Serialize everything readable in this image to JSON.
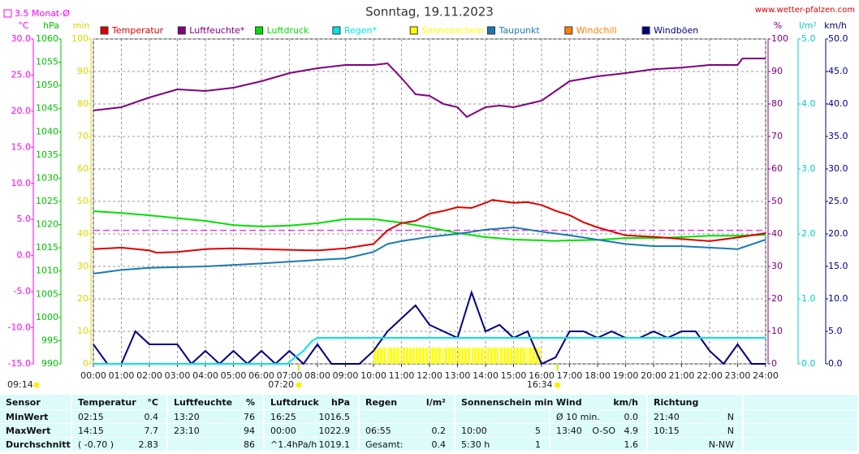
{
  "chart_data": {
    "type": "line",
    "title": "Sonntag, 19.11.2023",
    "source": "www.wetter-pfalzen.com",
    "xlim": [
      0,
      24
    ],
    "xticks": [
      {
        "value": 0,
        "label": "00:00"
      },
      {
        "value": 1,
        "label": "01:00"
      },
      {
        "value": 2,
        "label": "02:00"
      },
      {
        "value": 3,
        "label": "03:00"
      },
      {
        "value": 4,
        "label": "04:00"
      },
      {
        "value": 5,
        "label": "05:00"
      },
      {
        "value": 6,
        "label": "06:00"
      },
      {
        "value": 7,
        "label": "07:00"
      },
      {
        "value": 8,
        "label": "08:00"
      },
      {
        "value": 9,
        "label": "09:00"
      },
      {
        "value": 10,
        "label": "10:00"
      },
      {
        "value": 11,
        "label": "11:00"
      },
      {
        "value": 12,
        "label": "12:00"
      },
      {
        "value": 13,
        "label": "13:00"
      },
      {
        "value": 14,
        "label": "14:00"
      },
      {
        "value": 15,
        "label": "15:00"
      },
      {
        "value": 16,
        "label": "16:00"
      },
      {
        "value": 17,
        "label": "17:00"
      },
      {
        "value": 18,
        "label": "18:00"
      },
      {
        "value": 19,
        "label": "19:00"
      },
      {
        "value": 20,
        "label": "20:00"
      },
      {
        "value": 21,
        "label": "21:00"
      },
      {
        "value": 22,
        "label": "22:00"
      },
      {
        "value": 23,
        "label": "23:00"
      },
      {
        "value": 24,
        "label": "24:00"
      }
    ],
    "grid": true,
    "axes": {
      "temp": {
        "label": "°C",
        "color": "#ff00ff",
        "ylim": [
          -15,
          30
        ],
        "yticks": [
          {
            "value": 30,
            "label": "30.0"
          },
          {
            "value": 25,
            "label": "25.0"
          },
          {
            "value": 20,
            "label": "20.0"
          },
          {
            "value": 15,
            "label": "15.0"
          },
          {
            "value": 10,
            "label": "10.0"
          },
          {
            "value": 5,
            "label": "5.0"
          },
          {
            "value": 0,
            "label": "0.0"
          },
          {
            "value": -5,
            "label": "-5.0"
          },
          {
            "value": -10,
            "label": "-10.0"
          },
          {
            "value": -15,
            "label": "-15.0"
          }
        ]
      },
      "hpa": {
        "label": "hPa",
        "color": "#00c000",
        "ylim": [
          990,
          1060
        ],
        "yticks": [
          1060,
          1055,
          1050,
          1045,
          1040,
          1035,
          1030,
          1025,
          1020,
          1015,
          1010,
          1005,
          1000,
          995,
          990
        ]
      },
      "min": {
        "label": "min",
        "color": "#d8d800",
        "ylim": [
          0,
          100
        ],
        "yticks": [
          100,
          90,
          80,
          70,
          60,
          50,
          40,
          30,
          20,
          10,
          0
        ]
      },
      "pct": {
        "label": "%",
        "color": "#800080",
        "ylim": [
          0,
          100
        ],
        "yticks": [
          100,
          90,
          80,
          70,
          60,
          50,
          40,
          30,
          20,
          10,
          0
        ]
      },
      "rain": {
        "label": "l/m²",
        "color": "#00cccc",
        "ylim": [
          0,
          5
        ],
        "yticks": [
          {
            "value": 5,
            "label": "5.0"
          },
          {
            "value": 4,
            "label": "4.0"
          },
          {
            "value": 3,
            "label": "3.0"
          },
          {
            "value": 2,
            "label": "2.0"
          },
          {
            "value": 1,
            "label": "1.0"
          },
          {
            "value": 0,
            "label": "0.0"
          }
        ]
      },
      "wind": {
        "label": "km/h",
        "color": "#000080",
        "ylim": [
          0,
          50
        ],
        "yticks": [
          {
            "value": 50,
            "label": "50.0"
          },
          {
            "value": 45,
            "label": "45.0"
          },
          {
            "value": 40,
            "label": "40.0"
          },
          {
            "value": 35,
            "label": "35.0"
          },
          {
            "value": 30,
            "label": "30.0"
          },
          {
            "value": 25,
            "label": "25.0"
          },
          {
            "value": 20,
            "label": "20.0"
          },
          {
            "value": 15,
            "label": "15.0"
          },
          {
            "value": 10,
            "label": "10.0"
          },
          {
            "value": 5,
            "label": "5.0"
          },
          {
            "value": 0,
            "label": "0.0"
          }
        ]
      }
    },
    "monthly_mean": {
      "label": "3.5 Monat-Ø",
      "value": 3.5,
      "axis": "temp",
      "color": "#ff00ff"
    },
    "series": [
      {
        "name": "Temperatur",
        "color": "#e00000",
        "axis": "temp",
        "x": [
          0,
          1,
          2,
          2.25,
          3,
          4,
          5,
          6,
          7,
          8,
          9,
          10,
          10.5,
          11,
          11.5,
          12,
          12.5,
          13,
          13.5,
          14,
          14.25,
          15,
          15.5,
          16,
          16.5,
          17,
          17.5,
          18,
          19,
          20,
          21,
          22,
          23,
          24
        ],
        "values": [
          0.9,
          1.1,
          0.7,
          0.4,
          0.5,
          0.9,
          1.0,
          0.9,
          0.8,
          0.7,
          1.0,
          1.6,
          3.5,
          4.5,
          4.8,
          5.8,
          6.2,
          6.7,
          6.6,
          7.3,
          7.7,
          7.3,
          7.4,
          7.0,
          6.2,
          5.6,
          4.6,
          3.9,
          2.8,
          2.6,
          2.3,
          2.0,
          2.5,
          3.1
        ]
      },
      {
        "name": "Luftfeuchte*",
        "color": "#800080",
        "axis": "pct",
        "x": [
          0,
          1,
          2,
          3,
          4,
          5,
          6,
          7,
          8,
          9,
          10,
          10.5,
          11,
          11.5,
          12,
          12.5,
          13,
          13.33,
          14,
          14.5,
          15,
          15.5,
          16,
          16.5,
          17,
          18,
          19,
          20,
          21,
          22,
          23,
          23.17,
          24
        ],
        "values": [
          78,
          79,
          82,
          84.5,
          84,
          85,
          87,
          89.5,
          91,
          92,
          92,
          92.5,
          88,
          83,
          82.5,
          80,
          79,
          76,
          79,
          79.5,
          79,
          80,
          81,
          84,
          87,
          88.5,
          89.5,
          90.7,
          91.2,
          92,
          92,
          94,
          94
        ]
      },
      {
        "name": "Luftdruck",
        "color": "#00e000",
        "axis": "hpa",
        "x": [
          0,
          1,
          2,
          3,
          4,
          5,
          6,
          7,
          8,
          9,
          10,
          11,
          12,
          13,
          14,
          15,
          16,
          16.42,
          17,
          18,
          19,
          20,
          21,
          22,
          23,
          24
        ],
        "values": [
          1022.9,
          1022.5,
          1022.0,
          1021.4,
          1020.8,
          1019.9,
          1019.6,
          1019.8,
          1020.3,
          1021.2,
          1021.2,
          1020.4,
          1019.4,
          1018.2,
          1017.3,
          1016.8,
          1016.6,
          1016.5,
          1016.6,
          1016.7,
          1017.1,
          1017.1,
          1017.3,
          1017.6,
          1017.6,
          1017.8
        ]
      },
      {
        "name": "Regen*",
        "color": "#00e5e5",
        "axis": "rain",
        "x": [
          0,
          6.92,
          7.2,
          7.5,
          7.8,
          8,
          24
        ],
        "values": [
          0,
          0,
          0.1,
          0.2,
          0.35,
          0.4,
          0.4
        ]
      },
      {
        "name": "Sonnenschein",
        "color": "#ffff00",
        "axis": "min",
        "type": "bar",
        "bins": [
          10,
          10.5,
          11,
          11.5,
          12,
          12.5,
          13,
          13.5,
          14,
          14.5,
          15,
          15.5,
          16
        ],
        "values": [
          5,
          5,
          5,
          5,
          5,
          5,
          5,
          5,
          5,
          5,
          5,
          5
        ]
      },
      {
        "name": "Taupunkt",
        "color": "#1a7ab0",
        "axis": "temp",
        "x": [
          0,
          1,
          2,
          4,
          6,
          8,
          9,
          10,
          10.5,
          11,
          12,
          13,
          14,
          15,
          16,
          17,
          18,
          19,
          20,
          21,
          22,
          23,
          24
        ],
        "values": [
          -2.5,
          -2.0,
          -1.7,
          -1.5,
          -1.1,
          -0.6,
          -0.4,
          0.5,
          1.6,
          2.0,
          2.6,
          3.0,
          3.6,
          3.9,
          3.3,
          2.8,
          2.2,
          1.6,
          1.3,
          1.3,
          1.1,
          0.9,
          2.2
        ]
      },
      {
        "name": "Windchill",
        "color": "#ff8000",
        "axis": "temp"
      },
      {
        "name": "Windböen",
        "color": "#000080",
        "axis": "wind",
        "x": [
          0,
          0.5,
          1,
          1.5,
          2,
          2.5,
          3,
          3.5,
          4,
          4.5,
          5,
          5.5,
          6,
          6.5,
          7,
          7.5,
          8,
          8.5,
          9,
          9.5,
          10,
          10.5,
          11,
          11.5,
          12,
          12.5,
          13,
          13.5,
          14,
          14.5,
          15,
          15.5,
          16,
          16.5,
          17,
          17.5,
          18,
          18.5,
          19,
          19.5,
          20,
          20.5,
          21,
          21.5,
          22,
          22.5,
          23,
          23.5,
          24
        ],
        "values": [
          3,
          0,
          0,
          5,
          3,
          3,
          3,
          0,
          2,
          0,
          2,
          0,
          2,
          0,
          2,
          0,
          3,
          0,
          0,
          0,
          2,
          5,
          7,
          9,
          6,
          5,
          4,
          11,
          5,
          6,
          4,
          5,
          0,
          1,
          5,
          5,
          4,
          5,
          4,
          4,
          5,
          4,
          5,
          5,
          2,
          0,
          3,
          0,
          0
        ]
      }
    ],
    "sunrise": {
      "x": 7.3333,
      "label": "07:20"
    },
    "sunset": {
      "x": 16.5667,
      "label": "16:34"
    },
    "day_length": "09:14"
  },
  "table": {
    "header": [
      [
        "Sensor"
      ],
      [
        "Temperatur",
        "°C"
      ],
      [
        "Luftfeuchte",
        "%"
      ],
      [
        "Luftdruck",
        "hPa"
      ],
      [
        "Regen",
        "l/m²"
      ],
      [
        "Sonnenschein min"
      ],
      [
        "Wind",
        "km/h"
      ],
      [
        "Richtung"
      ]
    ],
    "rows": [
      [
        [
          "MinWert"
        ],
        [
          "02:15",
          "0.4"
        ],
        [
          "13:20",
          "76"
        ],
        [
          "16:25",
          "1016.5"
        ],
        [],
        [],
        [
          "Ø 10 min.",
          "0.0"
        ],
        [
          "21:40",
          "N"
        ]
      ],
      [
        [
          "MaxWert"
        ],
        [
          "14:15",
          "7.7"
        ],
        [
          "23:10",
          "94"
        ],
        [
          "00:00",
          "1022.9"
        ],
        [
          "06:55",
          "0.2"
        ],
        [
          "10:00",
          "5"
        ],
        [
          "13:40",
          "O-SO",
          "4.9"
        ],
        [
          "10:15",
          "N"
        ]
      ],
      [
        [
          "Durchschnitt"
        ],
        [
          "( -0.70 )",
          "2.83"
        ],
        [
          "86"
        ],
        [
          "^1.4hPa/h",
          "1019.1"
        ],
        [
          "Gesamt:",
          "0.4"
        ],
        [
          "5:30 h",
          "1"
        ],
        [
          "1.6"
        ],
        [
          "N-NW"
        ]
      ]
    ]
  }
}
